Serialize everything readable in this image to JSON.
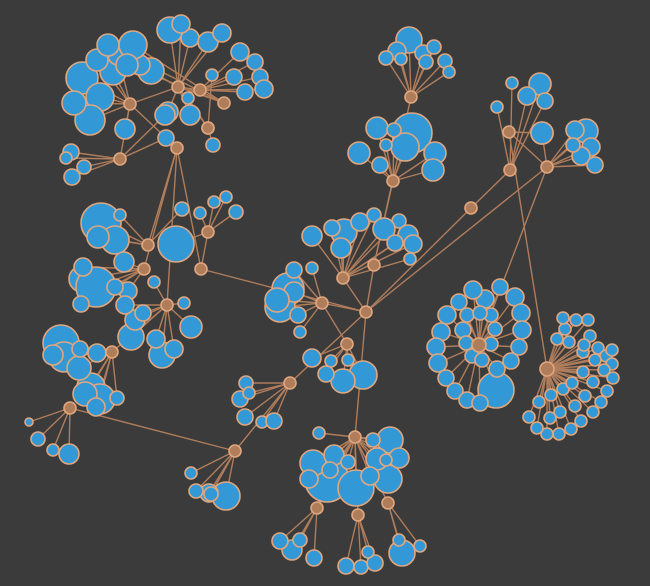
{
  "theme": {
    "background": "#3b3b3b",
    "link_color": "#b07d5b",
    "node_stroke": "#e0a77f",
    "internal_fill": "#b07d5b",
    "leaf_fill": "#3399d6"
  },
  "graph": {
    "type": "force-directed-tree",
    "labels_shown": false,
    "node_kinds": [
      "internal",
      "leaf"
    ],
    "root": "n0",
    "nodes": [
      {
        "id": "n0",
        "kind": "internal"
      },
      {
        "id": "n1",
        "kind": "internal"
      },
      {
        "id": "n2",
        "kind": "internal"
      },
      {
        "id": "n3",
        "kind": "internal"
      },
      {
        "id": "n4",
        "kind": "internal"
      },
      {
        "id": "n5",
        "kind": "internal"
      },
      {
        "id": "n6",
        "kind": "internal"
      },
      {
        "id": "n7",
        "kind": "internal"
      },
      {
        "id": "n8",
        "kind": "internal"
      },
      {
        "id": "n9",
        "kind": "internal"
      },
      {
        "id": "n10",
        "kind": "internal"
      },
      {
        "id": "n11",
        "kind": "internal"
      },
      {
        "id": "n12",
        "kind": "internal"
      },
      {
        "id": "n13",
        "kind": "internal"
      },
      {
        "id": "n14",
        "kind": "internal"
      },
      {
        "id": "n15",
        "kind": "internal"
      },
      {
        "id": "n16",
        "kind": "internal"
      },
      {
        "id": "n17",
        "kind": "internal"
      },
      {
        "id": "n18",
        "kind": "internal"
      },
      {
        "id": "n19",
        "kind": "internal"
      },
      {
        "id": "n20",
        "kind": "internal"
      },
      {
        "id": "n21",
        "kind": "internal"
      },
      {
        "id": "n22",
        "kind": "internal"
      },
      {
        "id": "n23",
        "kind": "internal"
      },
      {
        "id": "n24",
        "kind": "internal"
      },
      {
        "id": "n25",
        "kind": "internal"
      },
      {
        "id": "n26",
        "kind": "internal"
      },
      {
        "id": "n27",
        "kind": "internal"
      },
      {
        "id": "n28",
        "kind": "internal"
      },
      {
        "id": "n29",
        "kind": "internal"
      },
      {
        "id": "n30",
        "kind": "internal"
      },
      {
        "id": "n31",
        "kind": "internal"
      },
      {
        "id": "n32",
        "kind": "internal"
      }
    ],
    "links": [
      [
        "n0",
        "n1"
      ],
      [
        "n1",
        "n2"
      ],
      [
        "n2",
        "n3"
      ],
      [
        "n3",
        "n4"
      ],
      [
        "n4",
        "n5"
      ],
      [
        "n4",
        "n6"
      ],
      [
        "n4",
        "n7"
      ],
      [
        "n3",
        "n8"
      ],
      [
        "n2",
        "n9"
      ],
      [
        "n2",
        "n10"
      ],
      [
        "n2",
        "n11"
      ],
      [
        "n1",
        "n12"
      ],
      [
        "n11",
        "n13"
      ],
      [
        "n0",
        "n14"
      ],
      [
        "n0",
        "n15"
      ],
      [
        "n15",
        "n16"
      ],
      [
        "n0",
        "n17"
      ],
      [
        "n17",
        "n18"
      ],
      [
        "n17",
        "n19"
      ],
      [
        "n0",
        "n20"
      ],
      [
        "n20",
        "n21"
      ],
      [
        "n0",
        "n22"
      ],
      [
        "n22",
        "n23"
      ],
      [
        "n23",
        "n24"
      ],
      [
        "n22",
        "n25"
      ],
      [
        "n0",
        "n26"
      ],
      [
        "n26",
        "n27"
      ],
      [
        "n26",
        "n28"
      ],
      [
        "n26",
        "n29"
      ],
      [
        "n0",
        "n30"
      ],
      [
        "n30",
        "n31"
      ],
      [
        "n31",
        "n32"
      ]
    ]
  }
}
